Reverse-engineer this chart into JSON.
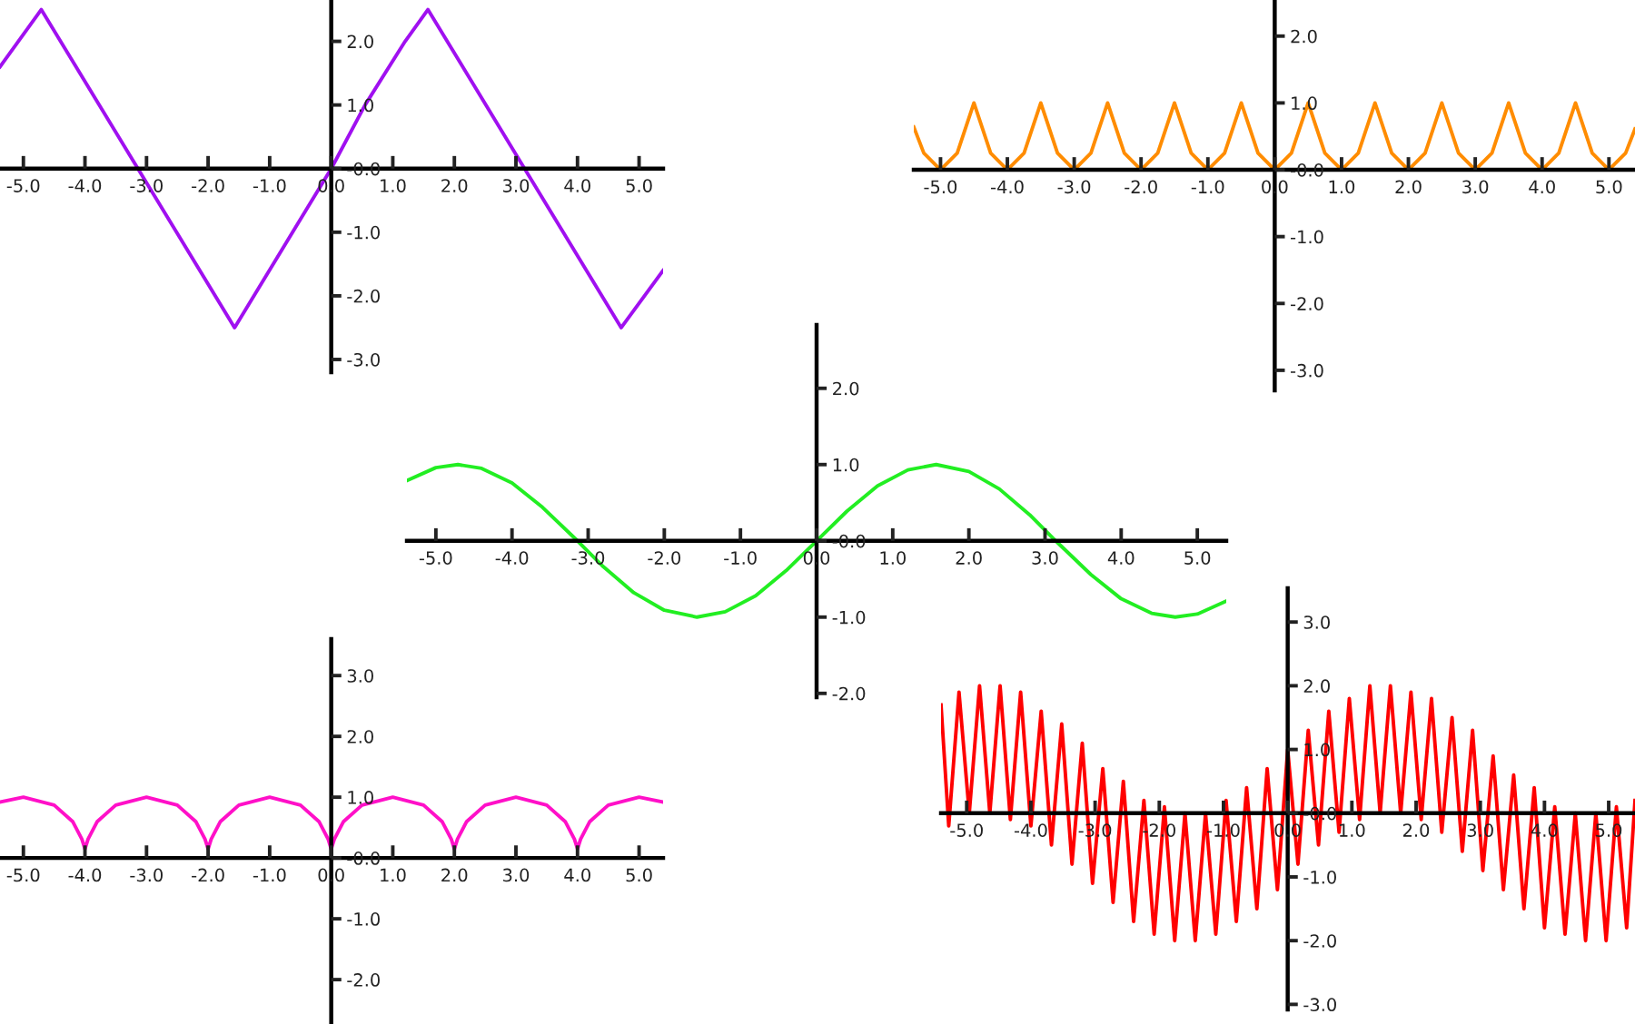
{
  "chart_data": [
    {
      "type": "line",
      "xlim": [
        -5.38,
        5.39
      ],
      "ylim": [
        -3.2,
        2.65
      ],
      "xticks": [
        {
          "value": -5,
          "label": "-5.0"
        },
        {
          "value": -4,
          "label": "-4.0"
        },
        {
          "value": -3,
          "label": "-3.0"
        },
        {
          "value": -2,
          "label": "-2.0"
        },
        {
          "value": -1,
          "label": "-1.0"
        },
        {
          "value": 0,
          "label": "0.0"
        },
        {
          "value": 1,
          "label": "1.0"
        },
        {
          "value": 2,
          "label": "2.0"
        },
        {
          "value": 3,
          "label": "3.0"
        },
        {
          "value": 4,
          "label": "4.0"
        },
        {
          "value": 5,
          "label": "5.0"
        }
      ],
      "yticks": [
        {
          "value": -3,
          "label": "-3.0"
        },
        {
          "value": -2,
          "label": "-2.0"
        },
        {
          "value": -1,
          "label": "-1.0"
        },
        {
          "value": 0,
          "label": "-0.0"
        },
        {
          "value": 1,
          "label": "1.0"
        },
        {
          "value": 2,
          "label": "2.0"
        }
      ],
      "grid": false,
      "legend": false,
      "marker": "none",
      "line_style": "solid",
      "series": [
        {
          "color": "#a010f0",
          "x": [
            -5.38,
            -4.71,
            -3.14,
            -1.57,
            0,
            0.55,
            1.2,
            1.57,
            3.14,
            4.71,
            5.39
          ],
          "values": [
            1.6,
            2.5,
            0.0,
            -2.5,
            0.0,
            1.0,
            2.0,
            2.5,
            0.0,
            -2.5,
            -1.6
          ]
        }
      ]
    },
    {
      "type": "line",
      "xlim": [
        -5.4,
        5.39
      ],
      "ylim": [
        -3.3,
        2.54
      ],
      "xticks": [
        {
          "value": -5,
          "label": "-5.0"
        },
        {
          "value": -4,
          "label": "-4.0"
        },
        {
          "value": -3,
          "label": "-3.0"
        },
        {
          "value": -2,
          "label": "-2.0"
        },
        {
          "value": -1,
          "label": "-1.0"
        },
        {
          "value": 0,
          "label": "0.0"
        },
        {
          "value": 1,
          "label": "1.0"
        },
        {
          "value": 2,
          "label": "2.0"
        },
        {
          "value": 3,
          "label": "3.0"
        },
        {
          "value": 4,
          "label": "4.0"
        },
        {
          "value": 5,
          "label": "5.0"
        }
      ],
      "yticks": [
        {
          "value": -3,
          "label": "-3.0"
        },
        {
          "value": -2,
          "label": "-2.0"
        },
        {
          "value": -1,
          "label": "-1.0"
        },
        {
          "value": 0,
          "label": "-0.0"
        },
        {
          "value": 1,
          "label": "1.0"
        },
        {
          "value": 2,
          "label": "2.0"
        }
      ],
      "grid": false,
      "legend": false,
      "marker": "none",
      "line_style": "solid",
      "series": [
        {
          "color": "#ff8c00",
          "x": [
            -5.4,
            -5.25,
            -5.0,
            -4.75,
            -4.5,
            -4.25,
            -4.0,
            -3.75,
            -3.5,
            -3.25,
            -3.0,
            -2.75,
            -2.5,
            -2.25,
            -2.0,
            -1.75,
            -1.5,
            -1.25,
            -1.0,
            -0.75,
            -0.5,
            -0.25,
            0.0,
            0.25,
            0.5,
            0.75,
            1.0,
            1.25,
            1.5,
            1.75,
            2.0,
            2.25,
            2.5,
            2.75,
            3.0,
            3.25,
            3.5,
            3.75,
            4.0,
            4.25,
            4.5,
            4.75,
            5.0,
            5.25,
            5.39
          ],
          "values": [
            0.64,
            0.25,
            0.0,
            0.25,
            1.0,
            0.25,
            0.0,
            0.25,
            1.0,
            0.25,
            0.0,
            0.25,
            1.0,
            0.25,
            0.0,
            0.25,
            1.0,
            0.25,
            0.0,
            0.25,
            1.0,
            0.25,
            0.0,
            0.25,
            1.0,
            0.25,
            0.0,
            0.25,
            1.0,
            0.25,
            0.0,
            0.25,
            1.0,
            0.25,
            0.0,
            0.25,
            1.0,
            0.25,
            0.0,
            0.25,
            1.0,
            0.25,
            0.0,
            0.25,
            0.61
          ]
        }
      ]
    },
    {
      "type": "line",
      "xlim": [
        -5.38,
        5.38
      ],
      "ylim": [
        -2.05,
        2.83
      ],
      "xticks": [
        {
          "value": -5,
          "label": "-5.0"
        },
        {
          "value": -4,
          "label": "-4.0"
        },
        {
          "value": -3,
          "label": "-3.0"
        },
        {
          "value": -2,
          "label": "-2.0"
        },
        {
          "value": -1,
          "label": "-1.0"
        },
        {
          "value": 0,
          "label": "0.0"
        },
        {
          "value": 1,
          "label": "1.0"
        },
        {
          "value": 2,
          "label": "2.0"
        },
        {
          "value": 3,
          "label": "3.0"
        },
        {
          "value": 4,
          "label": "4.0"
        },
        {
          "value": 5,
          "label": "5.0"
        }
      ],
      "yticks": [
        {
          "value": -2,
          "label": "-2.0"
        },
        {
          "value": -1,
          "label": "-1.0"
        },
        {
          "value": 0,
          "label": "-0.0"
        },
        {
          "value": 1,
          "label": "1.0"
        },
        {
          "value": 2,
          "label": "2.0"
        }
      ],
      "grid": false,
      "legend": false,
      "marker": "none",
      "line_style": "solid",
      "series": [
        {
          "color": "#22ee22",
          "x": [
            -5.38,
            -5.0,
            -4.71,
            -4.4,
            -4.0,
            -3.6,
            -3.14,
            -2.8,
            -2.4,
            -2.0,
            -1.57,
            -1.2,
            -0.8,
            -0.4,
            0.0,
            0.4,
            0.8,
            1.2,
            1.57,
            2.0,
            2.4,
            2.8,
            3.14,
            3.6,
            4.0,
            4.4,
            4.71,
            5.0,
            5.38
          ],
          "values": [
            0.79,
            0.96,
            1.0,
            0.95,
            0.76,
            0.44,
            0.0,
            -0.34,
            -0.68,
            -0.91,
            -1.0,
            -0.93,
            -0.72,
            -0.39,
            0.0,
            0.39,
            0.72,
            0.93,
            1.0,
            0.91,
            0.68,
            0.34,
            0.0,
            -0.44,
            -0.76,
            -0.95,
            -1.0,
            -0.96,
            -0.79
          ]
        }
      ]
    },
    {
      "type": "line",
      "xlim": [
        -5.38,
        5.39
      ],
      "ylim": [
        -2.73,
        3.6
      ],
      "xticks": [
        {
          "value": -5,
          "label": "-5.0"
        },
        {
          "value": -4,
          "label": "-4.0"
        },
        {
          "value": -3,
          "label": "-3.0"
        },
        {
          "value": -2,
          "label": "-2.0"
        },
        {
          "value": -1,
          "label": "-1.0"
        },
        {
          "value": 0,
          "label": "0.0"
        },
        {
          "value": 1,
          "label": "1.0"
        },
        {
          "value": 2,
          "label": "2.0"
        },
        {
          "value": 3,
          "label": "3.0"
        },
        {
          "value": 4,
          "label": "4.0"
        },
        {
          "value": 5,
          "label": "5.0"
        }
      ],
      "yticks": [
        {
          "value": -2,
          "label": "-2.0"
        },
        {
          "value": -1,
          "label": "-1.0"
        },
        {
          "value": 0,
          "label": "-0.0"
        },
        {
          "value": 1,
          "label": "1.0"
        },
        {
          "value": 2,
          "label": "2.0"
        },
        {
          "value": 3,
          "label": "3.0"
        }
      ],
      "grid": false,
      "legend": false,
      "marker": "none",
      "line_style": "solid",
      "series": [
        {
          "color": "#ff10c8",
          "x": [
            -5.38,
            -5.0,
            -4.5,
            -4.2,
            -4.05,
            -4.0,
            -3.95,
            -3.8,
            -3.5,
            -3.0,
            -2.5,
            -2.2,
            -2.05,
            -2.0,
            -1.95,
            -1.8,
            -1.5,
            -1.0,
            -0.5,
            -0.2,
            -0.05,
            0.0,
            0.05,
            0.2,
            0.5,
            1.0,
            1.5,
            1.8,
            1.95,
            2.0,
            2.05,
            2.2,
            2.5,
            3.0,
            3.5,
            3.8,
            3.95,
            4.0,
            4.05,
            4.2,
            4.5,
            5.0,
            5.39
          ],
          "values": [
            0.92,
            1.0,
            0.87,
            0.6,
            0.31,
            0.15,
            0.31,
            0.6,
            0.87,
            1.0,
            0.87,
            0.6,
            0.31,
            0.15,
            0.31,
            0.6,
            0.87,
            1.0,
            0.87,
            0.6,
            0.31,
            0.15,
            0.31,
            0.6,
            0.87,
            1.0,
            0.87,
            0.6,
            0.31,
            0.15,
            0.31,
            0.6,
            0.87,
            1.0,
            0.87,
            0.6,
            0.31,
            0.15,
            0.31,
            0.6,
            0.87,
            1.0,
            0.92
          ]
        }
      ]
    },
    {
      "type": "line",
      "xlim": [
        -5.4,
        5.41
      ],
      "ylim": [
        -3.08,
        3.53
      ],
      "xticks": [
        {
          "value": -5,
          "label": "-5.0"
        },
        {
          "value": -4,
          "label": "-4.0"
        },
        {
          "value": -3,
          "label": "-3.0"
        },
        {
          "value": -2,
          "label": "-2.0"
        },
        {
          "value": -1,
          "label": "-1.0"
        },
        {
          "value": 0,
          "label": "0.0"
        },
        {
          "value": 1,
          "label": "1.0"
        },
        {
          "value": 2,
          "label": "2.0"
        },
        {
          "value": 3,
          "label": "3.0"
        },
        {
          "value": 4,
          "label": "4.0"
        },
        {
          "value": 5,
          "label": "5.0"
        }
      ],
      "yticks": [
        {
          "value": -3,
          "label": "-3.0"
        },
        {
          "value": -2,
          "label": "-2.0"
        },
        {
          "value": -1,
          "label": "-1.0"
        },
        {
          "value": 0,
          "label": "-0.0"
        },
        {
          "value": 1,
          "label": "1.0"
        },
        {
          "value": 2,
          "label": "2.0"
        },
        {
          "value": 3,
          "label": "3.0"
        }
      ],
      "grid": false,
      "legend": false,
      "marker": "none",
      "line_style": "solid",
      "series": [
        {
          "color": "#ff0000",
          "x": [
            -5.4,
            -5.28,
            -5.12,
            -4.96,
            -4.8,
            -4.64,
            -4.48,
            -4.32,
            -4.16,
            -4.0,
            -3.84,
            -3.68,
            -3.52,
            -3.36,
            -3.2,
            -3.04,
            -2.88,
            -2.72,
            -2.56,
            -2.4,
            -2.24,
            -2.08,
            -1.92,
            -1.76,
            -1.6,
            -1.44,
            -1.28,
            -1.12,
            -0.96,
            -0.8,
            -0.64,
            -0.48,
            -0.32,
            -0.16,
            0.0,
            0.16,
            0.32,
            0.48,
            0.64,
            0.8,
            0.96,
            1.12,
            1.28,
            1.44,
            1.6,
            1.76,
            1.92,
            2.08,
            2.24,
            2.4,
            2.56,
            2.72,
            2.88,
            3.04,
            3.2,
            3.36,
            3.52,
            3.68,
            3.84,
            4.0,
            4.16,
            4.32,
            4.48,
            4.64,
            4.8,
            4.96,
            5.12,
            5.28,
            5.41
          ],
          "values": [
            1.7,
            -0.2,
            1.9,
            0.0,
            2.0,
            0.0,
            2.0,
            -0.1,
            1.9,
            -0.2,
            1.6,
            -0.5,
            1.4,
            -0.8,
            1.1,
            -1.1,
            0.7,
            -1.4,
            0.5,
            -1.7,
            0.2,
            -1.9,
            0.1,
            -2.0,
            0.0,
            -2.0,
            0.0,
            -1.9,
            0.2,
            -1.7,
            0.4,
            -1.5,
            0.7,
            -1.2,
            1.0,
            -0.8,
            1.3,
            -0.5,
            1.6,
            -0.3,
            1.8,
            -0.1,
            2.0,
            0.0,
            2.0,
            0.0,
            1.9,
            -0.1,
            1.8,
            -0.3,
            1.5,
            -0.6,
            1.3,
            -0.9,
            0.9,
            -1.2,
            0.6,
            -1.5,
            0.4,
            -1.8,
            0.1,
            -1.9,
            0.0,
            -2.0,
            0.0,
            -2.0,
            0.1,
            -1.8,
            0.2
          ]
        }
      ]
    }
  ]
}
